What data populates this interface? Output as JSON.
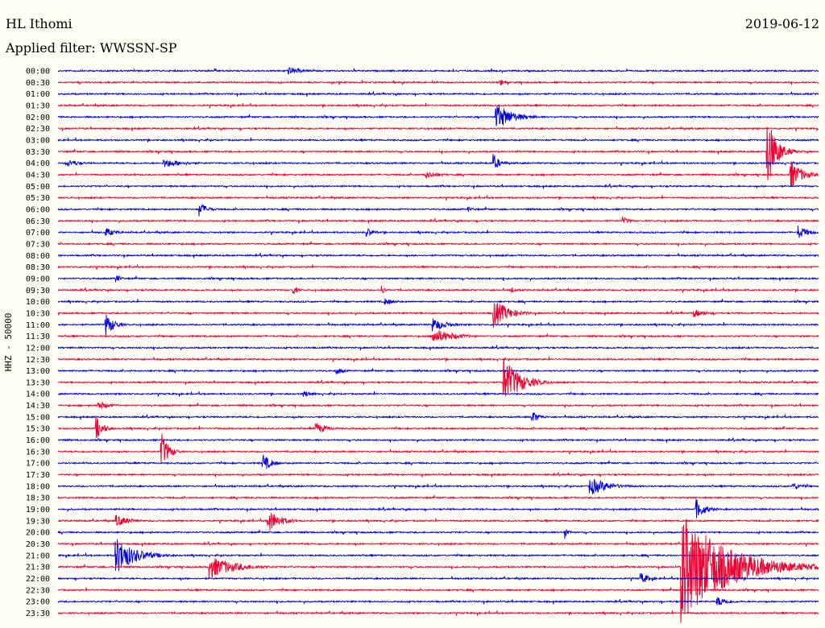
{
  "header": {
    "station": "HL Ithomi",
    "date": "2019-06-12",
    "filter_label": "Applied filter:",
    "filter_value": "WWSSN-SP"
  },
  "chart_data": {
    "type": "line",
    "title": "HL Ithomi",
    "date": "2019-06-12",
    "filter": "WWSSN-SP",
    "ylabel": "HHZ - 50000",
    "row_labels": [
      "00:00",
      "00:30",
      "01:00",
      "01:30",
      "02:00",
      "02:30",
      "03:00",
      "03:30",
      "04:00",
      "04:30",
      "05:00",
      "05:30",
      "06:00",
      "06:30",
      "07:00",
      "07:30",
      "08:00",
      "08:30",
      "09:00",
      "09:30",
      "10:00",
      "10:30",
      "11:00",
      "11:30",
      "12:00",
      "12:30",
      "13:00",
      "13:30",
      "14:00",
      "14:30",
      "15:00",
      "15:30",
      "16:00",
      "16:30",
      "17:00",
      "17:30",
      "18:00",
      "18:30",
      "19:00",
      "19:30",
      "20:00",
      "20:30",
      "21:00",
      "21:30",
      "22:00",
      "22:30",
      "23:00",
      "23:30"
    ],
    "row_minutes": 30,
    "colors": [
      "#0000dd",
      "#ee0033"
    ],
    "events": [
      {
        "row": 0,
        "minute": 9.1,
        "amp": 0.35,
        "dur": 1.2
      },
      {
        "row": 1,
        "minute": 17.5,
        "amp": 0.25,
        "dur": 0.4
      },
      {
        "row": 4,
        "minute": 17.3,
        "amp": 1.2,
        "dur": 1.4
      },
      {
        "row": 7,
        "minute": 28.0,
        "amp": 3.0,
        "dur": 0.8
      },
      {
        "row": 8,
        "minute": 0.4,
        "amp": 0.35,
        "dur": 1.0
      },
      {
        "row": 8,
        "minute": 4.2,
        "amp": 0.4,
        "dur": 1.8
      },
      {
        "row": 8,
        "minute": 17.2,
        "amp": 0.75,
        "dur": 0.5
      },
      {
        "row": 9,
        "minute": 14.5,
        "amp": 0.35,
        "dur": 1.2
      },
      {
        "row": 9,
        "minute": 28.9,
        "amp": 1.3,
        "dur": 1.0
      },
      {
        "row": 12,
        "minute": 5.6,
        "amp": 0.6,
        "dur": 0.7
      },
      {
        "row": 12,
        "minute": 16.2,
        "amp": 0.2,
        "dur": 0.6
      },
      {
        "row": 13,
        "minute": 22.3,
        "amp": 0.3,
        "dur": 0.7
      },
      {
        "row": 14,
        "minute": 1.9,
        "amp": 0.4,
        "dur": 0.9
      },
      {
        "row": 14,
        "minute": 12.2,
        "amp": 0.4,
        "dur": 0.6
      },
      {
        "row": 14,
        "minute": 29.2,
        "amp": 0.6,
        "dur": 0.9
      },
      {
        "row": 18,
        "minute": 2.3,
        "amp": 0.35,
        "dur": 0.5
      },
      {
        "row": 19,
        "minute": 9.3,
        "amp": 0.4,
        "dur": 0.4
      },
      {
        "row": 19,
        "minute": 12.8,
        "amp": 0.35,
        "dur": 0.3
      },
      {
        "row": 19,
        "minute": 17.9,
        "amp": 0.3,
        "dur": 0.3
      },
      {
        "row": 20,
        "minute": 12.9,
        "amp": 0.3,
        "dur": 1.0
      },
      {
        "row": 21,
        "minute": 17.2,
        "amp": 1.3,
        "dur": 1.2
      },
      {
        "row": 21,
        "minute": 25.1,
        "amp": 0.35,
        "dur": 1.2
      },
      {
        "row": 22,
        "minute": 1.9,
        "amp": 1.0,
        "dur": 0.7
      },
      {
        "row": 22,
        "minute": 14.8,
        "amp": 0.6,
        "dur": 1.2
      },
      {
        "row": 23,
        "minute": 14.8,
        "amp": 0.7,
        "dur": 1.8
      },
      {
        "row": 26,
        "minute": 11.0,
        "amp": 0.35,
        "dur": 0.6
      },
      {
        "row": 27,
        "minute": 17.6,
        "amp": 2.1,
        "dur": 1.4
      },
      {
        "row": 28,
        "minute": 9.7,
        "amp": 0.3,
        "dur": 0.8
      },
      {
        "row": 29,
        "minute": 1.6,
        "amp": 0.4,
        "dur": 1.0
      },
      {
        "row": 30,
        "minute": 18.7,
        "amp": 0.55,
        "dur": 0.7
      },
      {
        "row": 31,
        "minute": 1.5,
        "amp": 1.1,
        "dur": 0.6
      },
      {
        "row": 31,
        "minute": 10.2,
        "amp": 0.5,
        "dur": 1.0
      },
      {
        "row": 33,
        "minute": 4.1,
        "amp": 1.6,
        "dur": 0.6
      },
      {
        "row": 34,
        "minute": 8.1,
        "amp": 0.8,
        "dur": 0.7
      },
      {
        "row": 36,
        "minute": 21.0,
        "amp": 0.8,
        "dur": 1.6
      },
      {
        "row": 36,
        "minute": 29.0,
        "amp": 0.3,
        "dur": 1.0
      },
      {
        "row": 38,
        "minute": 25.2,
        "amp": 0.85,
        "dur": 0.8
      },
      {
        "row": 39,
        "minute": 2.3,
        "amp": 0.55,
        "dur": 1.1
      },
      {
        "row": 39,
        "minute": 8.3,
        "amp": 1.0,
        "dur": 1.1
      },
      {
        "row": 40,
        "minute": 20.0,
        "amp": 0.6,
        "dur": 0.3
      },
      {
        "row": 42,
        "minute": 2.3,
        "amp": 1.6,
        "dur": 1.7
      },
      {
        "row": 43,
        "minute": 6.0,
        "amp": 1.0,
        "dur": 2.2
      },
      {
        "row": 43,
        "minute": 24.6,
        "amp": 5.0,
        "dur": 3.8
      },
      {
        "row": 44,
        "minute": 23.0,
        "amp": 0.5,
        "dur": 0.8
      },
      {
        "row": 46,
        "minute": 26.0,
        "amp": 0.45,
        "dur": 1.0
      }
    ]
  }
}
